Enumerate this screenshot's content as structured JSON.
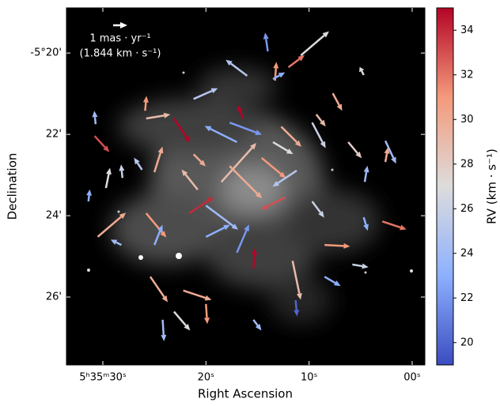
{
  "chart_data": {
    "type": "quiver",
    "xlabel": "Right Ascension",
    "ylabel": "Declination",
    "colorbar_label": "RV (km · s⁻¹)",
    "key_label": "1 mas · yr⁻¹",
    "key_sublabel": "(1.844 km · s⁻¹)",
    "xlim": [
      33.53,
      -1.23
    ],
    "xticks": [
      {
        "value": 30,
        "label": "5ʰ35ᵐ30ˢ"
      },
      {
        "value": 20,
        "label": "20ˢ"
      },
      {
        "value": 10,
        "label": "10ˢ"
      },
      {
        "value": 0,
        "label": "00ˢ"
      }
    ],
    "ylim": [
      27.67,
      18.89
    ],
    "yticks": [
      {
        "value": 20,
        "label": "-5°20'"
      },
      {
        "value": 22,
        "label": "22'"
      },
      {
        "value": 24,
        "label": "24'"
      },
      {
        "value": 26,
        "label": "26'"
      }
    ],
    "clim": [
      19,
      35
    ],
    "cticks": [
      20,
      22,
      24,
      26,
      28,
      30,
      32,
      34
    ],
    "colormap": [
      "#3b4cc0",
      "#8db0fe",
      "#dddcdc",
      "#f49a7b",
      "#b40426"
    ],
    "x": [
      30.8,
      29.7,
      30.7,
      30.5,
      28.2,
      31.4,
      28.1,
      26.2,
      25.0,
      25.9,
      25.8,
      23.1,
      21.2,
      16.4,
      17.7,
      14.0,
      13.3,
      10.8,
      12.0,
      13.5,
      16.0,
      4.7,
      7.7,
      9.3,
      9.7,
      2.6,
      2.6,
      6.2,
      4.6,
      2.9,
      4.7,
      5.8,
      8.5,
      8.5,
      11.6,
      11.3,
      15.4,
      20.0,
      22.2,
      23.1,
      24.2,
      25.4,
      25.8,
      25.0,
      21.6,
      17.0,
      15.4,
      20.0,
      18.5,
      14.6,
      13.5,
      12.3,
      12.7,
      11.2,
      20.8,
      17.0,
      17.7,
      9.7,
      20.0,
      21.2
    ],
    "y": [
      22.04,
      23.32,
      21.75,
      24.52,
      24.72,
      23.65,
      23.07,
      22.87,
      22.93,
      21.42,
      21.61,
      21.61,
      21.13,
      21.61,
      21.71,
      19.96,
      20.68,
      20.06,
      20.35,
      20.64,
      20.56,
      20.54,
      20.99,
      21.51,
      21.71,
      22.16,
      22.68,
      22.19,
      23.17,
      24.14,
      24.04,
      25.2,
      24.72,
      25.5,
      25.11,
      26.08,
      26.56,
      26.17,
      25.84,
      26.36,
      26.56,
      25.5,
      23.94,
      24.72,
      23.94,
      24.91,
      25.3,
      23.75,
      23.17,
      22.58,
      22.19,
      23.55,
      21.81,
      22.89,
      23.36,
      22.19,
      22.78,
      23.65,
      24.52,
      22.49
    ],
    "u": [
      -1.1,
      -0.3,
      0.1,
      -2.1,
      0.8,
      -0.1,
      0.1,
      0.6,
      -0.6,
      -0.1,
      -1.8,
      -1.2,
      -1.8,
      0.4,
      -2.4,
      0.2,
      -0.1,
      -2.1,
      -1.2,
      -0.9,
      1.6,
      0.3,
      -0.7,
      -0.7,
      -1.0,
      -0.8,
      -0.2,
      -1.0,
      -0.2,
      -1.8,
      -0.3,
      -1.2,
      -1.9,
      -1.2,
      -0.6,
      -0.1,
      -0.6,
      -0.1,
      -2.1,
      -1.2,
      -0.1,
      -1.3,
      -1.5,
      -0.6,
      -1.8,
      -0.9,
      -0.1,
      -2.4,
      -2.6,
      -1.8,
      -1.5,
      1.8,
      -1.5,
      1.8,
      1.2,
      2.4,
      -2.4,
      -0.9,
      -1.8,
      -0.9
    ],
    "v": [
      -1.2,
      1.5,
      1.0,
      1.8,
      0.4,
      0.9,
      1.0,
      0.9,
      1.9,
      1.1,
      0.3,
      -1.8,
      0.8,
      1.0,
      -0.9,
      1.4,
      1.4,
      1.8,
      0.9,
      0.5,
      1.2,
      0.6,
      -1.3,
      -0.9,
      -1.9,
      -1.7,
      1.1,
      -1.2,
      1.2,
      -0.6,
      -1.0,
      -0.2,
      -0.1,
      -0.7,
      -2.9,
      -1.2,
      -0.8,
      -1.5,
      -0.7,
      -1.4,
      -1.6,
      -1.9,
      -1.8,
      1.5,
      1.2,
      2.1,
      1.5,
      -1.8,
      2.9,
      -1.5,
      -0.9,
      -0.9,
      -1.5,
      -1.2,
      1.5,
      1.2,
      -2.4,
      -1.2,
      0.9,
      -0.9
    ],
    "c": [
      33,
      27,
      24,
      30,
      24,
      23,
      26,
      25,
      30,
      31,
      29,
      35,
      25,
      35,
      22,
      22,
      31,
      27,
      32,
      23,
      25,
      27,
      30,
      29,
      26,
      24,
      30,
      28,
      24,
      32,
      23,
      26,
      31,
      23,
      29,
      20,
      24,
      31,
      30,
      27,
      24,
      30,
      31,
      23,
      34,
      22,
      35,
      24,
      29,
      31,
      27,
      33,
      30,
      25,
      29,
      23,
      30,
      26,
      23,
      30
    ]
  }
}
